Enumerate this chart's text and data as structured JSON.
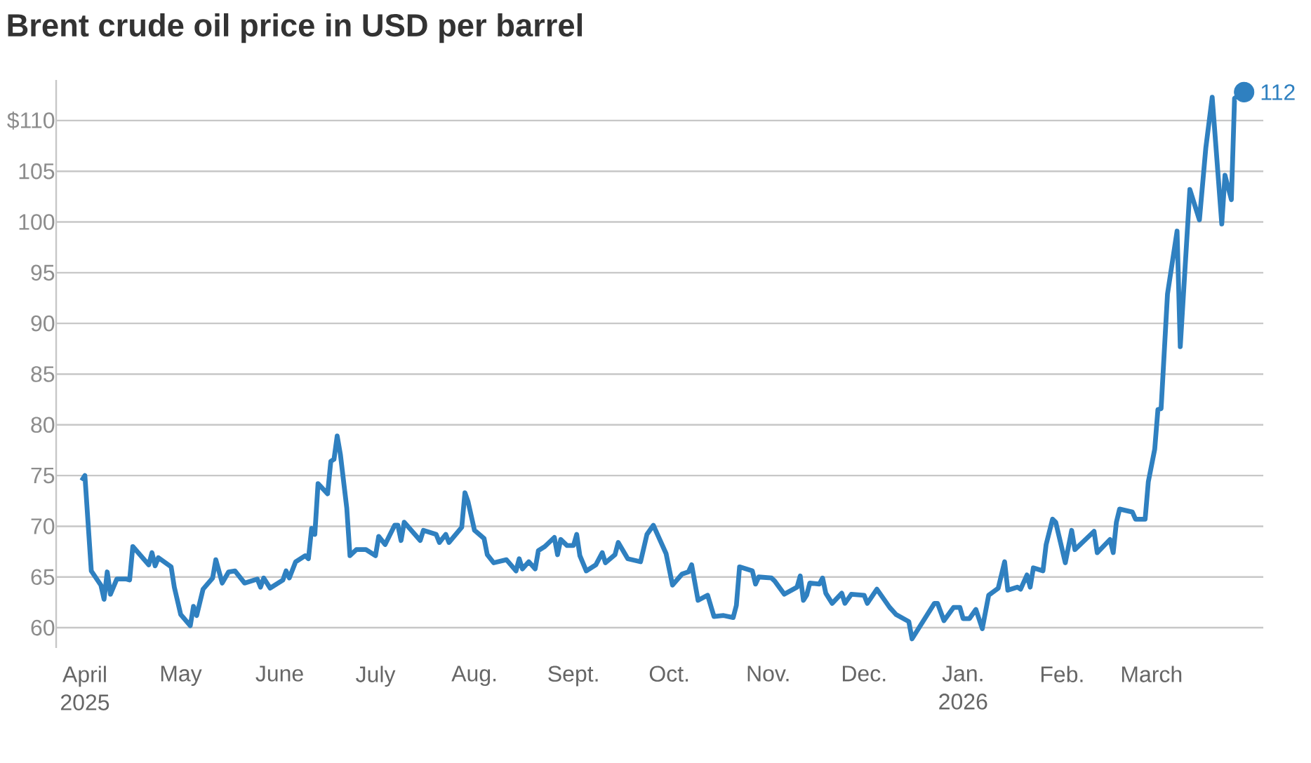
{
  "chart_data": {
    "type": "line",
    "title": "Brent crude oil price in USD per barrel",
    "xlim": [
      "2025-03-23",
      "2026-04-05"
    ],
    "xticks": [
      {
        "value": "2025-04-01",
        "label": "April 2025"
      },
      {
        "value": "2025-05-01",
        "label": "May"
      },
      {
        "value": "2025-06-01",
        "label": "June"
      },
      {
        "value": "2025-07-01",
        "label": "July"
      },
      {
        "value": "2025-08-01",
        "label": "Aug."
      },
      {
        "value": "2025-09-01",
        "label": "Sept."
      },
      {
        "value": "2025-10-01",
        "label": "Oct."
      },
      {
        "value": "2025-11-01",
        "label": "Nov."
      },
      {
        "value": "2025-12-01",
        "label": "Dec."
      },
      {
        "value": "2026-01-01",
        "label": "Jan. 2026"
      },
      {
        "value": "2026-02-01",
        "label": "Feb."
      },
      {
        "value": "2026-03-01",
        "label": "March"
      }
    ],
    "ylim": [
      58,
      114
    ],
    "yticks": [
      60,
      65,
      70,
      75,
      80,
      85,
      90,
      95,
      100,
      105,
      {
        "value": 110,
        "label": "$110"
      }
    ],
    "grid": "y",
    "annotations": [
      {
        "text": "112",
        "x": "2026-03-30",
        "y": 112.8
      }
    ],
    "series": [
      {
        "color": "#2f80c0",
        "x": [
          "2025-03-31",
          "2025-04-01",
          "2025-04-03",
          "2025-04-06",
          "2025-04-07",
          "2025-04-08",
          "2025-04-09",
          "2025-04-11",
          "2025-04-14",
          "2025-04-15",
          "2025-04-16",
          "2025-04-21",
          "2025-04-22",
          "2025-04-23",
          "2025-04-24",
          "2025-04-28",
          "2025-04-29",
          "2025-05-01",
          "2025-05-04",
          "2025-05-05",
          "2025-05-06",
          "2025-05-08",
          "2025-05-11",
          "2025-05-12",
          "2025-05-14",
          "2025-05-16",
          "2025-05-18",
          "2025-05-21",
          "2025-05-25",
          "2025-05-26",
          "2025-05-27",
          "2025-05-29",
          "2025-06-02",
          "2025-06-03",
          "2025-06-04",
          "2025-06-06",
          "2025-06-09",
          "2025-06-10",
          "2025-06-11",
          "2025-06-12",
          "2025-06-13",
          "2025-06-16",
          "2025-06-17",
          "2025-06-18",
          "2025-06-19",
          "2025-06-20",
          "2025-06-22",
          "2025-06-23",
          "2025-06-25",
          "2025-06-28",
          "2025-07-01",
          "2025-07-02",
          "2025-07-04",
          "2025-07-07",
          "2025-07-08",
          "2025-07-09",
          "2025-07-10",
          "2025-07-15",
          "2025-07-16",
          "2025-07-20",
          "2025-07-21",
          "2025-07-23",
          "2025-07-24",
          "2025-07-28",
          "2025-07-29",
          "2025-07-30",
          "2025-08-01",
          "2025-08-04",
          "2025-08-05",
          "2025-08-07",
          "2025-08-11",
          "2025-08-14",
          "2025-08-15",
          "2025-08-16",
          "2025-08-18",
          "2025-08-20",
          "2025-08-21",
          "2025-08-23",
          "2025-08-26",
          "2025-08-27",
          "2025-08-28",
          "2025-08-30",
          "2025-09-01",
          "2025-09-02",
          "2025-09-03",
          "2025-09-05",
          "2025-09-08",
          "2025-09-10",
          "2025-09-11",
          "2025-09-14",
          "2025-09-15",
          "2025-09-18",
          "2025-09-22",
          "2025-09-24",
          "2025-09-26",
          "2025-09-30",
          "2025-10-02",
          "2025-10-05",
          "2025-10-07",
          "2025-10-08",
          "2025-10-10",
          "2025-10-13",
          "2025-10-15",
          "2025-10-18",
          "2025-10-21",
          "2025-10-22",
          "2025-10-23",
          "2025-10-27",
          "2025-10-28",
          "2025-10-29",
          "2025-11-02",
          "2025-11-03",
          "2025-11-06",
          "2025-11-10",
          "2025-11-11",
          "2025-11-12",
          "2025-11-13",
          "2025-11-14",
          "2025-11-17",
          "2025-11-18",
          "2025-11-19",
          "2025-11-21",
          "2025-11-24",
          "2025-11-25",
          "2025-11-27",
          "2025-12-01",
          "2025-12-02",
          "2025-12-05",
          "2025-12-09",
          "2025-12-11",
          "2025-12-15",
          "2025-12-16",
          "2025-12-18",
          "2025-12-23",
          "2025-12-24",
          "2025-12-26",
          "2025-12-29",
          "2025-12-31",
          "2026-01-01",
          "2026-01-03",
          "2026-01-05",
          "2026-01-07",
          "2026-01-09",
          "2026-01-12",
          "2026-01-14",
          "2026-01-15",
          "2026-01-18",
          "2026-01-19",
          "2026-01-21",
          "2026-01-22",
          "2026-01-23",
          "2026-01-26",
          "2026-01-27",
          "2026-01-29",
          "2026-01-30",
          "2026-02-02",
          "2026-02-04",
          "2026-02-05",
          "2026-02-07",
          "2026-02-09",
          "2026-02-11",
          "2026-02-12",
          "2026-02-16",
          "2026-02-17",
          "2026-02-18",
          "2026-02-19",
          "2026-02-23",
          "2026-02-24",
          "2026-02-27",
          "2026-02-28",
          "2026-03-02",
          "2026-03-03",
          "2026-03-04",
          "2026-03-06",
          "2026-03-09",
          "2026-03-10",
          "2026-03-13",
          "2026-03-16",
          "2026-03-18",
          "2026-03-20",
          "2026-03-23",
          "2026-03-24",
          "2026-03-26",
          "2026-03-27",
          "2026-03-30"
        ],
        "values": [
          74.5,
          75.0,
          65.6,
          64.2,
          62.8,
          65.5,
          63.3,
          64.8,
          64.8,
          64.7,
          68.0,
          66.2,
          67.4,
          66.1,
          66.9,
          66.0,
          64.0,
          61.3,
          60.2,
          62.1,
          61.2,
          63.8,
          64.9,
          66.7,
          64.4,
          65.5,
          65.6,
          64.4,
          64.8,
          64.0,
          64.9,
          63.9,
          64.7,
          65.6,
          64.9,
          66.5,
          67.1,
          66.8,
          69.8,
          69.2,
          74.2,
          73.2,
          76.4,
          76.6,
          78.9,
          77.1,
          71.8,
          67.1,
          67.7,
          67.7,
          67.1,
          69.0,
          68.2,
          70.1,
          70.1,
          68.6,
          70.4,
          68.6,
          69.6,
          69.2,
          68.4,
          69.2,
          68.4,
          69.9,
          73.3,
          72.4,
          69.6,
          68.8,
          67.2,
          66.4,
          66.7,
          65.6,
          66.8,
          65.8,
          66.5,
          65.8,
          67.6,
          68.0,
          68.9,
          67.2,
          68.7,
          68.1,
          68.1,
          69.2,
          67.1,
          65.6,
          66.2,
          67.4,
          66.4,
          67.2,
          68.4,
          66.8,
          66.5,
          69.2,
          70.1,
          67.3,
          64.2,
          65.3,
          65.5,
          66.2,
          62.7,
          63.2,
          61.1,
          61.2,
          61.0,
          62.2,
          66.0,
          65.6,
          64.3,
          65.0,
          64.9,
          64.6,
          63.3,
          64.0,
          65.1,
          62.7,
          63.2,
          64.4,
          64.3,
          64.9,
          63.4,
          62.4,
          63.4,
          62.4,
          63.3,
          63.2,
          62.4,
          63.8,
          62.0,
          61.3,
          60.6,
          58.9,
          59.9,
          62.4,
          62.4,
          60.7,
          62.0,
          62.0,
          60.9,
          60.9,
          61.8,
          59.9,
          63.2,
          63.9,
          66.5,
          63.7,
          64.0,
          63.8,
          65.2,
          64.0,
          65.9,
          65.6,
          68.2,
          70.7,
          70.4,
          66.4,
          69.6,
          67.7,
          68.3,
          68.9,
          69.5,
          67.4,
          68.7,
          67.4,
          70.4,
          71.7,
          71.4,
          70.7,
          70.7,
          74.4,
          77.6,
          81.5,
          81.6,
          92.9,
          99.1,
          87.7,
          103.2,
          100.2,
          107.3,
          112.3,
          99.8,
          104.6,
          102.2,
          112.2,
          112.8
        ]
      },
      {
        "type": "scatter",
        "marker": "circle",
        "color": "#2f80c0",
        "x": [
          "2026-03-30"
        ],
        "values": [
          112.8
        ]
      }
    ]
  }
}
